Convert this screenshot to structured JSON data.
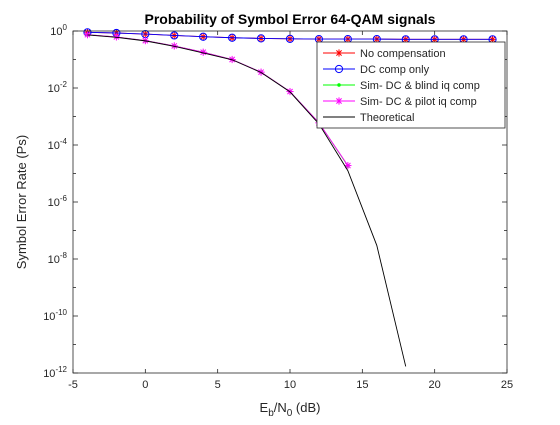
{
  "chart_data": {
    "type": "line",
    "title": "Probability of Symbol Error 64-QAM signals",
    "xlabel": "E_b/N_0 (dB)",
    "ylabel": "Symbol Error Rate (Ps)",
    "yscale": "log",
    "xlim": [
      -5,
      25
    ],
    "ylim": [
      1e-12,
      1
    ],
    "grid": false,
    "legend_location": "top-right",
    "x_ticks": [
      -5,
      0,
      5,
      10,
      15,
      20,
      25
    ],
    "x_tick_labels": [
      "-5",
      "0",
      "5",
      "10",
      "15",
      "20",
      "25"
    ],
    "y_ticks": [
      {
        "value": 1.0,
        "base": "10",
        "exp": "0"
      },
      {
        "value": 0.01,
        "base": "10",
        "exp": "-2"
      },
      {
        "value": 0.0001,
        "base": "10",
        "exp": "-4"
      },
      {
        "value": 1e-06,
        "base": "10",
        "exp": "-6"
      },
      {
        "value": 1e-08,
        "base": "10",
        "exp": "-8"
      },
      {
        "value": 1e-10,
        "base": "10",
        "exp": "-10"
      },
      {
        "value": 1e-12,
        "base": "10",
        "exp": "-12"
      }
    ],
    "series": [
      {
        "name": "No compensation",
        "color": "#ff0000",
        "marker": "asterisk",
        "x": [
          -4,
          -2,
          0,
          2,
          4,
          6,
          8,
          10,
          12,
          14,
          16,
          18,
          20,
          22,
          24
        ],
        "y": [
          0.9,
          0.85,
          0.78,
          0.7,
          0.63,
          0.58,
          0.55,
          0.53,
          0.52,
          0.52,
          0.52,
          0.51,
          0.51,
          0.51,
          0.51
        ]
      },
      {
        "name": "DC comp only",
        "color": "#0000ff",
        "marker": "circle",
        "x": [
          -4,
          -2,
          0,
          2,
          4,
          6,
          8,
          10,
          12,
          14,
          16,
          18,
          20,
          22,
          24
        ],
        "y": [
          0.9,
          0.85,
          0.78,
          0.7,
          0.63,
          0.58,
          0.55,
          0.53,
          0.52,
          0.52,
          0.52,
          0.51,
          0.51,
          0.51,
          0.51
        ]
      },
      {
        "name": "Sim- DC & blind iq comp",
        "color": "#00ff00",
        "marker": "point",
        "x": [
          -4,
          -2,
          0,
          2,
          4,
          6,
          8,
          10,
          12,
          14
        ],
        "y": [
          0.74,
          0.62,
          0.46,
          0.3,
          0.18,
          0.1,
          0.036,
          0.0075,
          0.0006,
          1.85e-05
        ]
      },
      {
        "name": "Sim- DC & pilot iq comp",
        "color": "#ff00ff",
        "marker": "asterisk",
        "x": [
          -4,
          -2,
          0,
          2,
          4,
          6,
          8,
          10,
          12,
          14
        ],
        "y": [
          0.74,
          0.62,
          0.46,
          0.3,
          0.18,
          0.1,
          0.036,
          0.0075,
          0.0006,
          1.9e-05
        ]
      },
      {
        "name": "Theoretical",
        "color": "#000000",
        "marker": "none",
        "x": [
          -4,
          -2,
          0,
          2,
          4,
          6,
          8,
          10,
          12,
          14,
          16,
          18
        ],
        "y": [
          0.73,
          0.6,
          0.45,
          0.29,
          0.17,
          0.098,
          0.035,
          0.0073,
          0.00055,
          1.25e-05,
          3e-08,
          1.7e-12
        ]
      }
    ]
  }
}
